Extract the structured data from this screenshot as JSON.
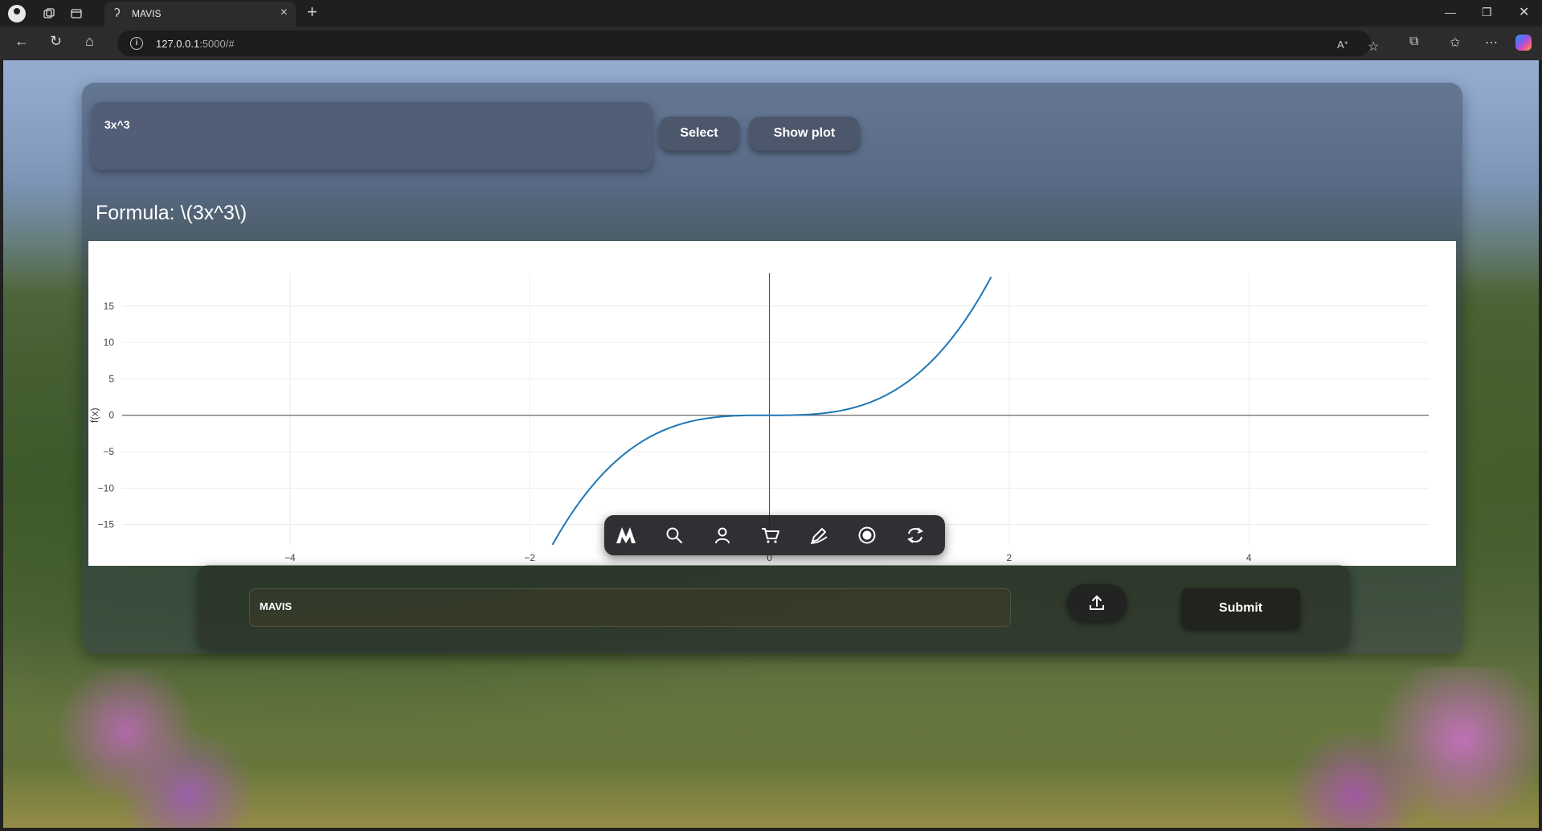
{
  "browser": {
    "tab_title": "MAVIS",
    "url_host": "127.0.0.1",
    "url_rest": ":5000/#"
  },
  "controls": {
    "formula_input_value": "3x^3",
    "select_label": "Select",
    "show_plot_label": "Show plot"
  },
  "formula": {
    "label": "Formula: \\(3x^3\\)"
  },
  "chart_data": {
    "type": "line",
    "expression": "3x^3",
    "x": [
      -1.81,
      -1.6,
      -1.4,
      -1.2,
      -1.0,
      -0.8,
      -0.6,
      -0.4,
      -0.2,
      0,
      0.2,
      0.4,
      0.6,
      0.8,
      1.0,
      1.2,
      1.4,
      1.6,
      1.85
    ],
    "y": [
      -17.79,
      -12.29,
      -8.23,
      -5.18,
      -3.0,
      -1.54,
      -0.65,
      -0.19,
      -0.02,
      0,
      0.02,
      0.19,
      0.65,
      1.54,
      3.0,
      5.18,
      8.23,
      12.29,
      19.0
    ],
    "xlim": [
      -5.4,
      5.5
    ],
    "ylim": [
      -17.8,
      19.5
    ],
    "x_ticks": [
      -4,
      -2,
      0,
      2,
      4
    ],
    "x_tick_labels": [
      "−4",
      "−2",
      "0",
      "2",
      "4"
    ],
    "y_ticks": [
      -15,
      -10,
      -5,
      0,
      5,
      10,
      15
    ],
    "y_tick_labels": [
      "−15",
      "−10",
      "−5",
      "0",
      "5",
      "10",
      "15"
    ],
    "ylabel": "f(x)",
    "line_color": "#1f77b4",
    "grid": true
  },
  "dock": {
    "items": [
      "logo-icon",
      "search-icon",
      "user-icon",
      "cart-icon",
      "edit-icon",
      "record-icon",
      "refresh-icon"
    ]
  },
  "bottom": {
    "prompt_value": "MAVIS",
    "submit_label": "Submit"
  }
}
